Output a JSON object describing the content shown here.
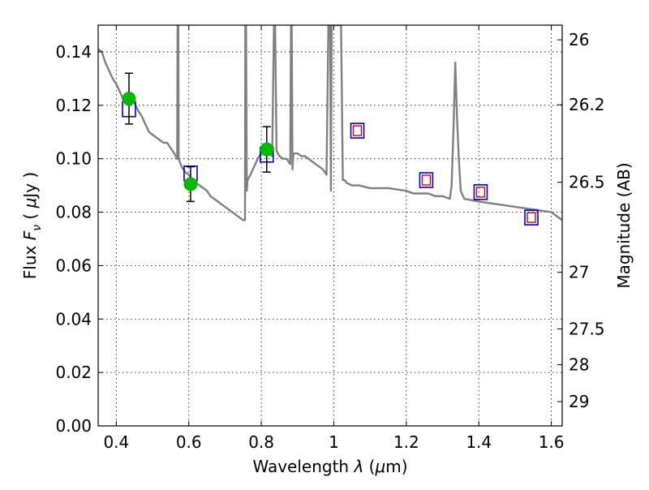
{
  "chart_data": {
    "type": "scatter",
    "xlabel": "Wavelength  λ (μm)",
    "ylabel": "Flux  F_ν  ( μJy )",
    "y2label": "Magnitude (AB)",
    "xlim": [
      0.35,
      1.63
    ],
    "ylim": [
      0.0,
      0.15
    ],
    "grid": true,
    "x_ticks": [
      0.4,
      0.6,
      0.8,
      1.0,
      1.2,
      1.4,
      1.6
    ],
    "x_tick_labels": [
      "0.4",
      "0.6",
      "0.8",
      "1",
      "1.2",
      "1.4",
      "1.6"
    ],
    "y_ticks": [
      0.0,
      0.02,
      0.04,
      0.06,
      0.08,
      0.1,
      0.12,
      0.14
    ],
    "y_tick_labels": [
      "0.00",
      "0.02",
      "0.04",
      "0.06",
      "0.08",
      "0.10",
      "0.12",
      "0.14"
    ],
    "y2_ticks": [
      {
        "label": "26",
        "flux": 0.1445
      },
      {
        "label": "26.2",
        "flux": 0.1202
      },
      {
        "label": "26.5",
        "flux": 0.0912
      },
      {
        "label": "27",
        "flux": 0.0575
      },
      {
        "label": "27.5",
        "flux": 0.0363
      },
      {
        "label": "28",
        "flux": 0.0229
      },
      {
        "label": "29",
        "flux": 0.0091
      }
    ],
    "series": [
      {
        "kind": "spectrum",
        "color": "#808080",
        "x": [
          0.35,
          0.36,
          0.37,
          0.38,
          0.39,
          0.4,
          0.41,
          0.42,
          0.43,
          0.44,
          0.45,
          0.46,
          0.47,
          0.48,
          0.49,
          0.5,
          0.51,
          0.52,
          0.53,
          0.54,
          0.55,
          0.56,
          0.568,
          0.569,
          0.571,
          0.572,
          0.58,
          0.59,
          0.6,
          0.61,
          0.62,
          0.63,
          0.64,
          0.65,
          0.66,
          0.67,
          0.68,
          0.69,
          0.7,
          0.71,
          0.72,
          0.73,
          0.74,
          0.75,
          0.755,
          0.756,
          0.758,
          0.76,
          0.762,
          0.77,
          0.78,
          0.79,
          0.8,
          0.81,
          0.82,
          0.83,
          0.835,
          0.838,
          0.842,
          0.85,
          0.86,
          0.87,
          0.88,
          0.882,
          0.884,
          0.886,
          0.888,
          0.89,
          0.9,
          0.91,
          0.92,
          0.93,
          0.94,
          0.95,
          0.96,
          0.97,
          0.98,
          0.985,
          0.99,
          0.992,
          0.994,
          0.996,
          0.998,
          1.0,
          1.005,
          1.01,
          1.015,
          1.02,
          1.025,
          1.03,
          1.035,
          1.05,
          1.07,
          1.1,
          1.15,
          1.2,
          1.22,
          1.24,
          1.26,
          1.28,
          1.3,
          1.32,
          1.325,
          1.33,
          1.335,
          1.34,
          1.345,
          1.35,
          1.36,
          1.4,
          1.45,
          1.5,
          1.55,
          1.6,
          1.63
        ],
        "y": [
          0.141,
          0.14,
          0.136,
          0.133,
          0.13,
          0.128,
          0.125,
          0.122,
          0.121,
          0.123,
          0.121,
          0.118,
          0.116,
          0.113,
          0.11,
          0.109,
          0.108,
          0.107,
          0.106,
          0.106,
          0.104,
          0.102,
          0.1,
          0.15,
          0.15,
          0.1,
          0.097,
          0.095,
          0.094,
          0.092,
          0.091,
          0.09,
          0.089,
          0.088,
          0.086,
          0.085,
          0.084,
          0.083,
          0.082,
          0.081,
          0.08,
          0.079,
          0.078,
          0.077,
          0.077,
          0.15,
          0.15,
          0.088,
          0.092,
          0.094,
          0.097,
          0.1,
          0.102,
          0.103,
          0.102,
          0.101,
          0.15,
          0.15,
          0.103,
          0.101,
          0.1,
          0.1,
          0.098,
          0.15,
          0.15,
          0.096,
          0.101,
          0.102,
          0.102,
          0.101,
          0.101,
          0.1,
          0.099,
          0.098,
          0.097,
          0.096,
          0.094,
          0.15,
          0.15,
          0.088,
          0.15,
          0.15,
          0.15,
          0.15,
          0.15,
          0.15,
          0.15,
          0.15,
          0.092,
          0.092,
          0.091,
          0.09,
          0.09,
          0.089,
          0.089,
          0.088,
          0.087,
          0.087,
          0.087,
          0.086,
          0.086,
          0.085,
          0.09,
          0.11,
          0.136,
          0.115,
          0.1,
          0.088,
          0.085,
          0.084,
          0.083,
          0.082,
          0.081,
          0.08,
          0.077
        ]
      },
      {
        "kind": "observed",
        "color": "#00bb00",
        "x": [
          0.435,
          0.605,
          0.815
        ],
        "y": [
          0.1225,
          0.0905,
          0.1035
        ],
        "yerr": [
          0.0095,
          0.0065,
          0.0085
        ]
      },
      {
        "kind": "model-open",
        "color": "#0000cc",
        "x": [
          0.435,
          0.605,
          0.815,
          1.065,
          1.255,
          1.405,
          1.545
        ],
        "y": [
          0.1185,
          0.0945,
          0.1015,
          0.1105,
          0.092,
          0.0875,
          0.078
        ]
      },
      {
        "kind": "model-small",
        "color": "#dd0000",
        "x": [
          1.065,
          1.255,
          1.405,
          1.545
        ],
        "y": [
          0.1105,
          0.092,
          0.0875,
          0.078
        ]
      }
    ]
  }
}
